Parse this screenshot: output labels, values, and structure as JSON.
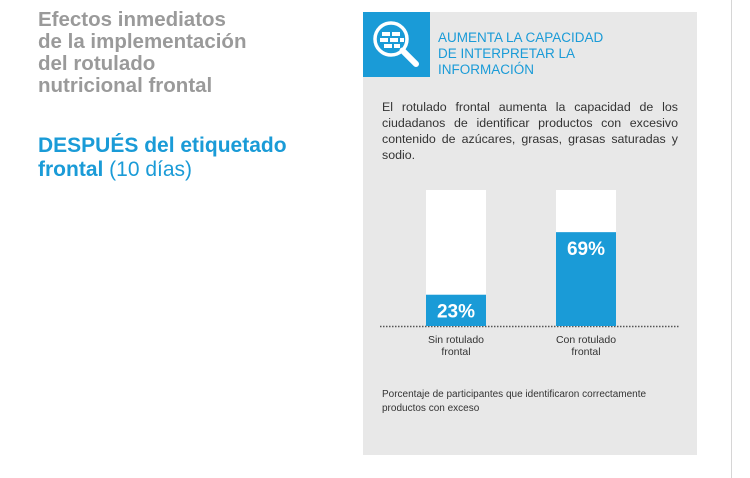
{
  "heading": {
    "lines": [
      "Efectos inmediatos",
      "de la implementación",
      "del rotulado",
      "nutricional frontal"
    ]
  },
  "subheading": {
    "line1_bold": "DESPUÉS del etiquetado",
    "line2_bold": "frontal",
    "line2_normal": " (10 días)"
  },
  "panel": {
    "icon": "magnifier-icon",
    "title_lines": [
      "AUMENTA LA CAPACIDAD",
      "DE INTERPRETAR LA",
      "INFORMACIÓN"
    ],
    "text": "El rotulado frontal aumenta la capacidad de los ciudadanos de identificar productos con excesivo contenido de azúcares, grasas, grasas saturadas y sodio.",
    "footnote": "Porcentaje de participantes que identificaron correctamente productos con exceso"
  },
  "colors": {
    "accent": "#1a9bd7",
    "heading_gray": "#9a9a9a",
    "panel_bg": "#e8e8e8",
    "bar_bg": "#ffffff"
  },
  "chart_data": {
    "type": "bar",
    "categories": [
      "Sin rotulado frontal",
      "Con rotulado frontal"
    ],
    "category_lines": [
      [
        "Sin rotulado",
        "frontal"
      ],
      [
        "Con rotulado",
        "frontal"
      ]
    ],
    "values": [
      23,
      69
    ],
    "value_labels": [
      "23%",
      "69%"
    ],
    "ylim": [
      0,
      100
    ],
    "unit": "%",
    "title": "",
    "xlabel": "",
    "ylabel": ""
  }
}
